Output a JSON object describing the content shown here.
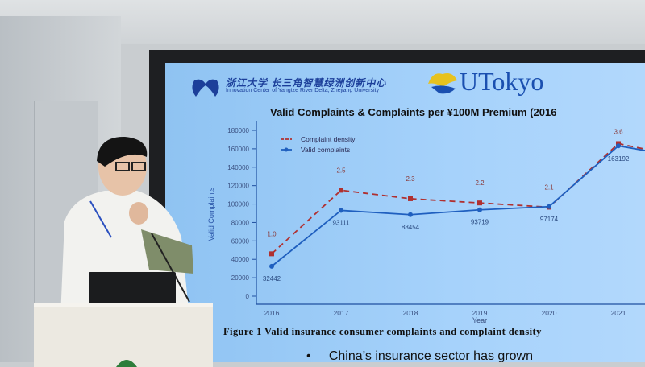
{
  "slide": {
    "logo_zju_cn": "浙江大学 长三角智慧绿洲创新中心",
    "logo_zju_en": "Innovation Center of Yangtze River Delta, Zhejiang University",
    "logo_utokyo": "UTokyo",
    "figure_caption": "Figure 1 Valid insurance consumer complaints and complaint density",
    "bullet_text": "China’s insurance sector has grown"
  },
  "colors": {
    "valid": "#1f5fbf",
    "density": "#b03030",
    "screen": "#a6d2fb"
  },
  "chart_data": {
    "type": "line",
    "title": "Valid Complaints & Complaints per ¥100M Premium (2016",
    "xlabel": "Year",
    "ylabel": "Valid Complaints",
    "categories": [
      "2016",
      "2017",
      "2018",
      "2019",
      "2020",
      "2021"
    ],
    "ylim": [
      0,
      180000
    ],
    "yticks": [
      "0",
      "20000",
      "40000",
      "60000",
      "80000",
      "100000",
      "120000",
      "140000",
      "160000",
      "180000"
    ],
    "grid": false,
    "legend": "top-left",
    "series": [
      {
        "name": "Complaint density",
        "values": [
          1.0,
          2.5,
          2.3,
          2.2,
          2.1,
          3.6
        ],
        "labels": [
          "1.0",
          "2.5",
          "2.3",
          "2.2",
          "2.1",
          "3.6"
        ],
        "style": "dashed"
      },
      {
        "name": "Valid complaints",
        "values": [
          32442,
          93111,
          88454,
          93719,
          97174,
          163192
        ],
        "labels": [
          "32442",
          "93111",
          "88454",
          "93719",
          "97174",
          "163192"
        ],
        "style": "solid"
      }
    ]
  }
}
